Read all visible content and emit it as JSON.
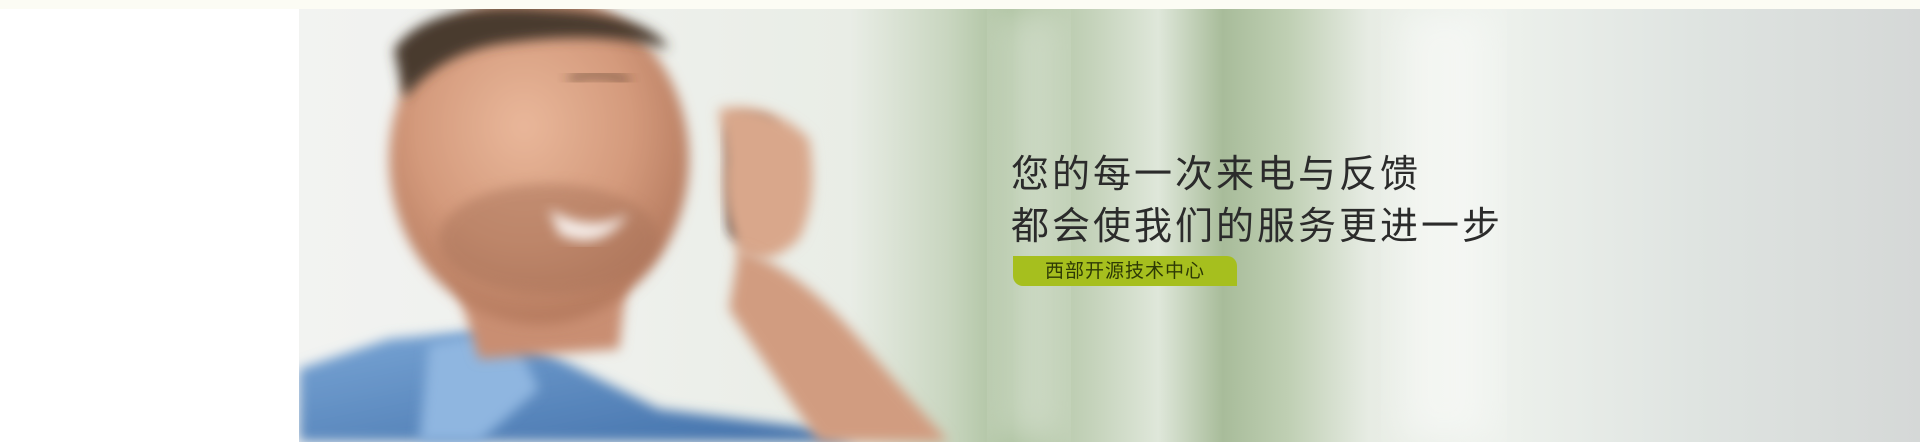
{
  "banner": {
    "photo_icon": "man-on-phone-photo",
    "headline_line1": "您的每一次来电与反馈",
    "headline_line2": "都会使我们的服务更进一步",
    "badge_text": "西部开源技术中心",
    "badge_color": "#a6bf1e",
    "text_color": "#2b2b2b"
  }
}
